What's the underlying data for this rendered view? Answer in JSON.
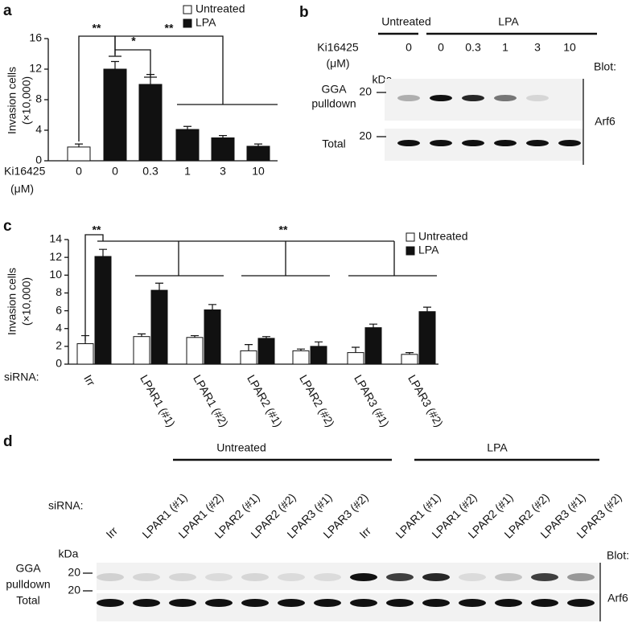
{
  "chart_data": [
    {
      "type": "bar",
      "panel": "a",
      "ylabel": [
        "Invasion cells",
        "(×10,000)"
      ],
      "category_title": "Ki16425",
      "category_unit": "(μM)",
      "categories": [
        "0",
        "0",
        "0.3",
        "1",
        "3",
        "10"
      ],
      "series": [
        {
          "name": "Untreated",
          "color": "#ffffff",
          "values": [
            1.8,
            null,
            null,
            null,
            null,
            null
          ],
          "errors": [
            0.4,
            null,
            null,
            null,
            null,
            null
          ]
        },
        {
          "name": "LPA",
          "color": "#111111",
          "values": [
            null,
            12,
            10,
            4.1,
            3.0,
            1.9
          ],
          "errors": [
            null,
            1.0,
            1.3,
            0.4,
            0.3,
            0.3
          ]
        }
      ],
      "ylim": [
        0,
        16
      ],
      "yticks": [
        0,
        4,
        8,
        12,
        16
      ],
      "annotations": [
        "**",
        "*",
        "**"
      ]
    },
    {
      "type": "bar",
      "panel": "c",
      "ylabel": [
        "Invasion cells",
        "(×10,000)"
      ],
      "category_title": "siRNA:",
      "categories": [
        "Irr",
        "LPAR1 (#1)",
        "LPAR1 (#2)",
        "LPAR2 (#1)",
        "LPAR2 (#2)",
        "LPAR3 (#1)",
        "LPAR3 (#2)"
      ],
      "series": [
        {
          "name": "Untreated",
          "color": "#ffffff",
          "values": [
            2.3,
            3.1,
            3.0,
            1.5,
            1.5,
            1.3,
            1.1
          ],
          "errors": [
            0.9,
            0.3,
            0.2,
            0.7,
            0.2,
            0.6,
            0.2
          ]
        },
        {
          "name": "LPA",
          "color": "#111111",
          "values": [
            12.1,
            8.3,
            6.1,
            2.9,
            2.0,
            4.1,
            5.9
          ],
          "errors": [
            0.8,
            0.8,
            0.6,
            0.2,
            0.5,
            0.4,
            0.5
          ]
        }
      ],
      "ylim": [
        0,
        14
      ],
      "yticks": [
        0,
        2,
        4,
        6,
        8,
        10,
        12,
        14
      ],
      "annotations": [
        "**",
        "**"
      ]
    }
  ],
  "blots": [
    {
      "panel": "b",
      "groups": [
        "Untreated",
        "LPA"
      ],
      "condition_title": "Ki16425",
      "condition_unit": "(μM)",
      "lanes": [
        "0",
        "0",
        "0.3",
        "1",
        "3",
        "10"
      ],
      "kda": "kDa",
      "blot_title": "Blot:",
      "antibody": "Arf6",
      "rows": [
        {
          "label": [
            "GGA",
            "pulldown"
          ],
          "marker": "20"
        },
        {
          "label": [
            "Total"
          ],
          "marker": "20"
        }
      ]
    },
    {
      "panel": "d",
      "groups": [
        "Untreated",
        "LPA"
      ],
      "condition_title": "siRNA:",
      "lanes": [
        "Irr",
        "LPAR1 (#1)",
        "LPAR1 (#2)",
        "LPAR2 (#1)",
        "LPAR2 (#2)",
        "LPAR3 (#1)",
        "LPAR3 (#2)",
        "Irr",
        "LPAR1 (#1)",
        "LPAR1 (#2)",
        "LPAR2 (#1)",
        "LPAR2 (#2)",
        "LPAR3 (#1)",
        "LPAR3 (#2)"
      ],
      "kda": "kDa",
      "blot_title": "Blot:",
      "antibody": "Arf6",
      "rows": [
        {
          "label": [
            "GGA",
            "pulldown"
          ],
          "marker": "20"
        },
        {
          "label": [
            "Total"
          ],
          "marker": "20"
        }
      ]
    }
  ]
}
